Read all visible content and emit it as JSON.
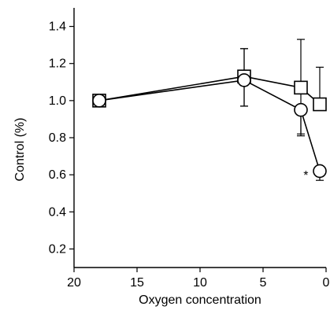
{
  "chart_data": {
    "type": "line",
    "xlabel": "Oxygen concentration",
    "ylabel": "Control (%)",
    "xlim": [
      20,
      0
    ],
    "ylim": [
      0.1,
      1.5
    ],
    "x_ticks": [
      20,
      15,
      10,
      5,
      0
    ],
    "x_tick_labels": [
      "20",
      "15",
      "10",
      "5",
      "0"
    ],
    "y_ticks": [
      0.2,
      0.4,
      0.6,
      0.8,
      1.0,
      1.2,
      1.4
    ],
    "y_tick_labels": [
      "0.2",
      "0.4",
      "0.6",
      "0.8",
      "1.0",
      "1.2",
      "1.4"
    ],
    "series": [
      {
        "marker": "square",
        "x": [
          18,
          6.5,
          2,
          0.5
        ],
        "y": [
          1.0,
          1.13,
          1.07,
          0.98
        ],
        "err_upper": [
          0,
          0.15,
          0.26,
          0.2
        ],
        "err_lower": [
          0,
          0.16,
          0.26,
          0.0
        ]
      },
      {
        "marker": "circle",
        "x": [
          18,
          6.5,
          2,
          0.5
        ],
        "y": [
          1.0,
          1.11,
          0.95,
          0.62
        ],
        "err_upper": [
          0,
          0.17,
          0.0,
          0.0
        ],
        "err_lower": [
          0,
          0.14,
          0.13,
          0.05
        ]
      }
    ],
    "annotations": [
      {
        "text": "*",
        "x": 1.6,
        "y": 0.6
      }
    ]
  }
}
